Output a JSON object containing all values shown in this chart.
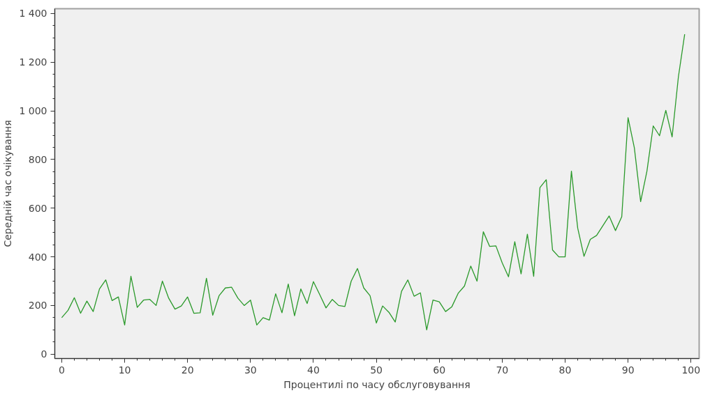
{
  "chart_data": {
    "type": "line",
    "xlabel": "Процентилі по часу обслуговування",
    "ylabel": "Середній час очікування",
    "x": [
      0,
      1,
      2,
      3,
      4,
      5,
      6,
      7,
      8,
      9,
      10,
      11,
      12,
      13,
      14,
      15,
      16,
      17,
      18,
      19,
      20,
      21,
      22,
      23,
      24,
      25,
      26,
      27,
      28,
      29,
      30,
      31,
      32,
      33,
      34,
      35,
      36,
      37,
      38,
      39,
      40,
      41,
      42,
      43,
      44,
      45,
      46,
      47,
      48,
      49,
      50,
      51,
      52,
      53,
      54,
      55,
      56,
      57,
      58,
      59,
      60,
      61,
      62,
      63,
      64,
      65,
      66,
      67,
      68,
      69,
      70,
      71,
      72,
      73,
      74,
      75,
      76,
      77,
      78,
      79,
      80,
      81,
      82,
      83,
      84,
      85,
      86,
      87,
      88,
      89,
      90,
      91,
      92,
      93,
      94,
      95,
      96,
      97,
      98,
      99
    ],
    "series": [
      {
        "color": "#2a992a",
        "values": [
          150,
          180,
          232,
          168,
          218,
          175,
          268,
          305,
          220,
          235,
          120,
          320,
          192,
          222,
          225,
          200,
          300,
          230,
          185,
          198,
          235,
          168,
          170,
          312,
          160,
          240,
          272,
          275,
          230,
          200,
          222,
          120,
          150,
          140,
          248,
          170,
          288,
          158,
          268,
          208,
          298,
          245,
          190,
          225,
          200,
          196,
          300,
          352,
          272,
          240,
          128,
          198,
          172,
          132,
          258,
          305,
          238,
          252,
          100,
          222,
          215,
          175,
          195,
          250,
          280,
          362,
          300,
          503,
          443,
          445,
          375,
          318,
          462,
          330,
          493,
          320,
          685,
          717,
          428,
          400,
          400,
          752,
          518,
          402,
          472,
          488,
          528,
          568,
          508,
          565,
          972,
          848,
          627,
          752,
          938,
          898,
          1002,
          893,
          1140,
          1315
        ]
      }
    ],
    "xlim": [
      -1.1,
      101.3
    ],
    "ylim": [
      -18,
      1420
    ],
    "xticks": [
      0,
      10,
      20,
      30,
      40,
      50,
      60,
      70,
      80,
      90,
      100
    ],
    "yticks": [
      0,
      200,
      400,
      600,
      800,
      {
        "value": 1000,
        "label": "1 000"
      },
      {
        "value": 1200,
        "label": "1 200"
      },
      {
        "value": 1400,
        "label": "1 400"
      }
    ],
    "grid": false,
    "marker": "none",
    "line_style": "solid"
  }
}
